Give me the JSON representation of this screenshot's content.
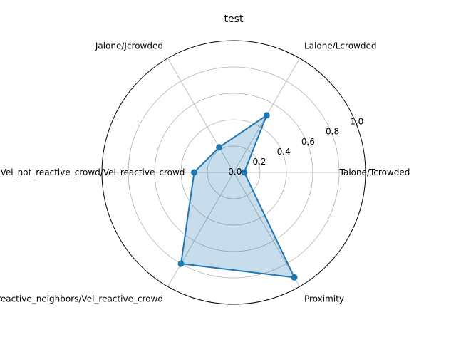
{
  "chart_data": {
    "type": "radar",
    "title": "test",
    "categories": [
      "Talone/Tcrowded",
      "Lalone/Lcrowded",
      "Jalone/Jcrowded",
      "Vel_not_reactive_crowd/Vel_reactive_crowd",
      "Vel_reactive_neighbors/Vel_reactive_crowd",
      "Proximity"
    ],
    "values": [
      0.08,
      0.5,
      0.22,
      0.3,
      0.8,
      0.92
    ],
    "rlim": [
      0,
      1.0
    ],
    "r_ticks": [
      0.0,
      0.2,
      0.4,
      0.6,
      0.8,
      1.0
    ],
    "r_tick_labels": [
      "0.0",
      "0.2",
      "0.4",
      "0.6",
      "0.8",
      "1.0"
    ],
    "grid": true,
    "colors": {
      "line": "#1f77b4",
      "fill": "#1f77b4",
      "grid": "#b0b0b0",
      "spine": "#000000"
    }
  }
}
